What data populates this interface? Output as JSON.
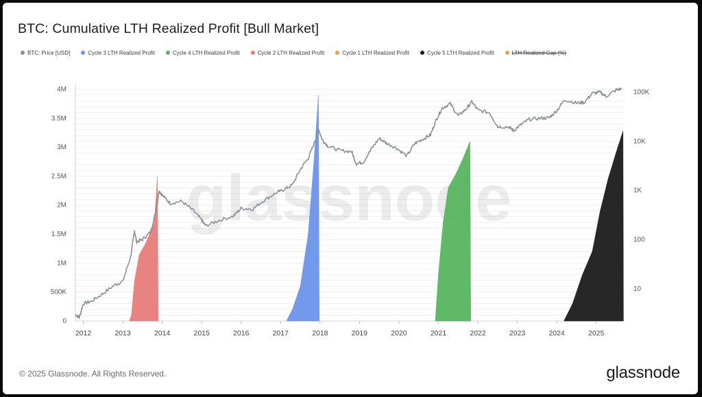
{
  "title": "BTC: Cumulative LTH Realized Profit [Bull Market]",
  "legend": [
    {
      "label": "BTC: Price [USD]",
      "color": "#8a8f96",
      "disabled": false
    },
    {
      "label": "Cycle 3 LTH Realized Profit",
      "color": "#6a93ea",
      "disabled": false
    },
    {
      "label": "Cycle 4 LTH Realized Profit",
      "color": "#57b55f",
      "disabled": false
    },
    {
      "label": "Cycle 2 LTH Realized Profit",
      "color": "#e87c78",
      "disabled": false
    },
    {
      "label": "Cycle 1 LTH Realized Profit",
      "color": "#f0a232",
      "disabled": false
    },
    {
      "label": "Cycle 5 LTH Realized Profit",
      "color": "#1b1b1b",
      "disabled": false
    },
    {
      "label": "LTH Realized Cap (%)",
      "color": "#f0a232",
      "disabled": true
    }
  ],
  "watermark": "glassnode",
  "footer": {
    "copyright": "© 2025 Glassnode. All Rights Reserved.",
    "brand": "glassnode"
  },
  "chart_data": {
    "type": "area",
    "title": "BTC: Cumulative LTH Realized Profit [Bull Market]",
    "x_ticks": [
      "2012",
      "2013",
      "2014",
      "2015",
      "2016",
      "2017",
      "2018",
      "2019",
      "2020",
      "2021",
      "2022",
      "2023",
      "2024",
      "2025"
    ],
    "x_range": [
      2011.8,
      2025.7
    ],
    "y_left": {
      "ticks": [
        0,
        500000,
        1000000,
        1500000,
        2000000,
        2500000,
        3000000,
        3500000,
        4000000
      ],
      "labels": [
        "0",
        "500K",
        "1M",
        "1.5M",
        "2M",
        "2.5M",
        "3M",
        "3.5M",
        "4M"
      ],
      "range": [
        0,
        4100000
      ]
    },
    "y_right": {
      "scale": "log",
      "ticks": [
        10,
        100,
        1000,
        10000,
        100000
      ],
      "labels": [
        "10",
        "100",
        "1K",
        "10K",
        "100K"
      ],
      "range": [
        2.2,
        150000
      ]
    },
    "series": [
      {
        "name": "Cycle 2 LTH Realized Profit",
        "color": "#e87c78",
        "axis": "left",
        "points": [
          [
            2013.17,
            0
          ],
          [
            2013.22,
            100000
          ],
          [
            2013.3,
            700000
          ],
          [
            2013.42,
            1150000
          ],
          [
            2013.55,
            1300000
          ],
          [
            2013.68,
            1500000
          ],
          [
            2013.8,
            1700000
          ],
          [
            2013.88,
            2500000
          ],
          [
            2013.9,
            0
          ]
        ]
      },
      {
        "name": "Cycle 3 LTH Realized Profit",
        "color": "#6a93ea",
        "axis": "left",
        "points": [
          [
            2017.15,
            0
          ],
          [
            2017.3,
            200000
          ],
          [
            2017.5,
            600000
          ],
          [
            2017.7,
            1500000
          ],
          [
            2017.85,
            2800000
          ],
          [
            2017.96,
            3900000
          ],
          [
            2017.98,
            0
          ]
        ]
      },
      {
        "name": "Cycle 4 LTH Realized Profit",
        "color": "#57b55f",
        "axis": "left",
        "points": [
          [
            2020.92,
            0
          ],
          [
            2021.0,
            800000
          ],
          [
            2021.12,
            1700000
          ],
          [
            2021.25,
            2300000
          ],
          [
            2021.45,
            2550000
          ],
          [
            2021.62,
            2800000
          ],
          [
            2021.8,
            3100000
          ],
          [
            2021.82,
            0
          ]
        ]
      },
      {
        "name": "Cycle 5 LTH Realized Profit",
        "color": "#1b1b1b",
        "axis": "left",
        "points": [
          [
            2024.18,
            0
          ],
          [
            2024.4,
            300000
          ],
          [
            2024.65,
            800000
          ],
          [
            2024.9,
            1200000
          ],
          [
            2025.1,
            1900000
          ],
          [
            2025.3,
            2450000
          ],
          [
            2025.5,
            2900000
          ],
          [
            2025.68,
            3280000
          ],
          [
            2025.69,
            0
          ]
        ]
      },
      {
        "name": "BTC: Price [USD]",
        "color": "#8a8f96",
        "axis": "right",
        "points": [
          [
            2011.8,
            3
          ],
          [
            2011.9,
            2.6
          ],
          [
            2012.0,
            5
          ],
          [
            2012.2,
            5.5
          ],
          [
            2012.5,
            8
          ],
          [
            2012.8,
            12
          ],
          [
            2013.0,
            14
          ],
          [
            2013.2,
            45
          ],
          [
            2013.3,
            150
          ],
          [
            2013.35,
            90
          ],
          [
            2013.5,
            100
          ],
          [
            2013.7,
            140
          ],
          [
            2013.85,
            400
          ],
          [
            2013.92,
            1000
          ],
          [
            2014.0,
            800
          ],
          [
            2014.2,
            550
          ],
          [
            2014.5,
            600
          ],
          [
            2014.8,
            380
          ],
          [
            2015.0,
            250
          ],
          [
            2015.1,
            190
          ],
          [
            2015.4,
            240
          ],
          [
            2015.8,
            300
          ],
          [
            2016.0,
            430
          ],
          [
            2016.3,
            420
          ],
          [
            2016.6,
            650
          ],
          [
            2016.9,
            900
          ],
          [
            2017.1,
            1050
          ],
          [
            2017.3,
            1300
          ],
          [
            2017.5,
            2700
          ],
          [
            2017.7,
            4500
          ],
          [
            2017.85,
            9000
          ],
          [
            2017.96,
            18000
          ],
          [
            2018.05,
            11000
          ],
          [
            2018.2,
            8000
          ],
          [
            2018.5,
            6500
          ],
          [
            2018.8,
            6200
          ],
          [
            2018.92,
            3500
          ],
          [
            2019.1,
            3800
          ],
          [
            2019.3,
            7000
          ],
          [
            2019.5,
            11500
          ],
          [
            2019.7,
            9000
          ],
          [
            2019.95,
            7200
          ],
          [
            2020.2,
            5000
          ],
          [
            2020.4,
            9000
          ],
          [
            2020.6,
            11000
          ],
          [
            2020.8,
            13500
          ],
          [
            2020.95,
            28000
          ],
          [
            2021.1,
            48000
          ],
          [
            2021.3,
            58000
          ],
          [
            2021.5,
            33000
          ],
          [
            2021.7,
            45000
          ],
          [
            2021.85,
            64000
          ],
          [
            2022.0,
            43000
          ],
          [
            2022.3,
            38000
          ],
          [
            2022.5,
            20000
          ],
          [
            2022.8,
            19500
          ],
          [
            2022.9,
            16500
          ],
          [
            2023.1,
            22000
          ],
          [
            2023.3,
            28000
          ],
          [
            2023.6,
            29500
          ],
          [
            2023.8,
            30000
          ],
          [
            2024.0,
            42000
          ],
          [
            2024.2,
            70000
          ],
          [
            2024.5,
            60000
          ],
          [
            2024.7,
            62000
          ],
          [
            2024.9,
            95000
          ],
          [
            2025.1,
            100000
          ],
          [
            2025.25,
            82000
          ],
          [
            2025.5,
            110000
          ],
          [
            2025.65,
            118000
          ]
        ]
      }
    ]
  }
}
